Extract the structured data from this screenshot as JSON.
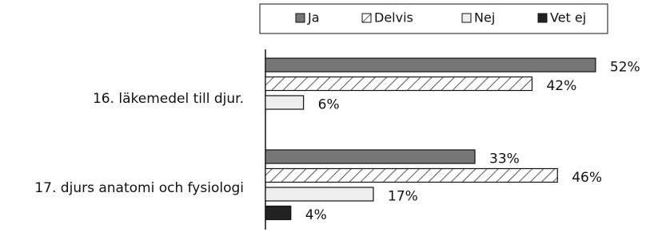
{
  "chart_data": {
    "type": "bar",
    "orientation": "horizontal",
    "categories": [
      "16. läkemedel till djur.",
      "17. djurs anatomi och fysiologi"
    ],
    "series": [
      {
        "name": "Ja",
        "color": "#777777",
        "values": [
          52,
          33
        ],
        "value_labels": [
          "52%",
          "33%"
        ]
      },
      {
        "name": "Delvis",
        "color": "hatch",
        "values": [
          42,
          46
        ],
        "value_labels": [
          "42%",
          "46%"
        ]
      },
      {
        "name": "Nej",
        "color": "#eeeeee",
        "values": [
          6,
          17
        ],
        "value_labels": [
          "6%",
          "17%"
        ]
      },
      {
        "name": "Vet ej",
        "color": "#222222",
        "values": [
          null,
          4
        ],
        "value_labels": [
          null,
          "4%"
        ]
      }
    ],
    "legend": "top"
  }
}
